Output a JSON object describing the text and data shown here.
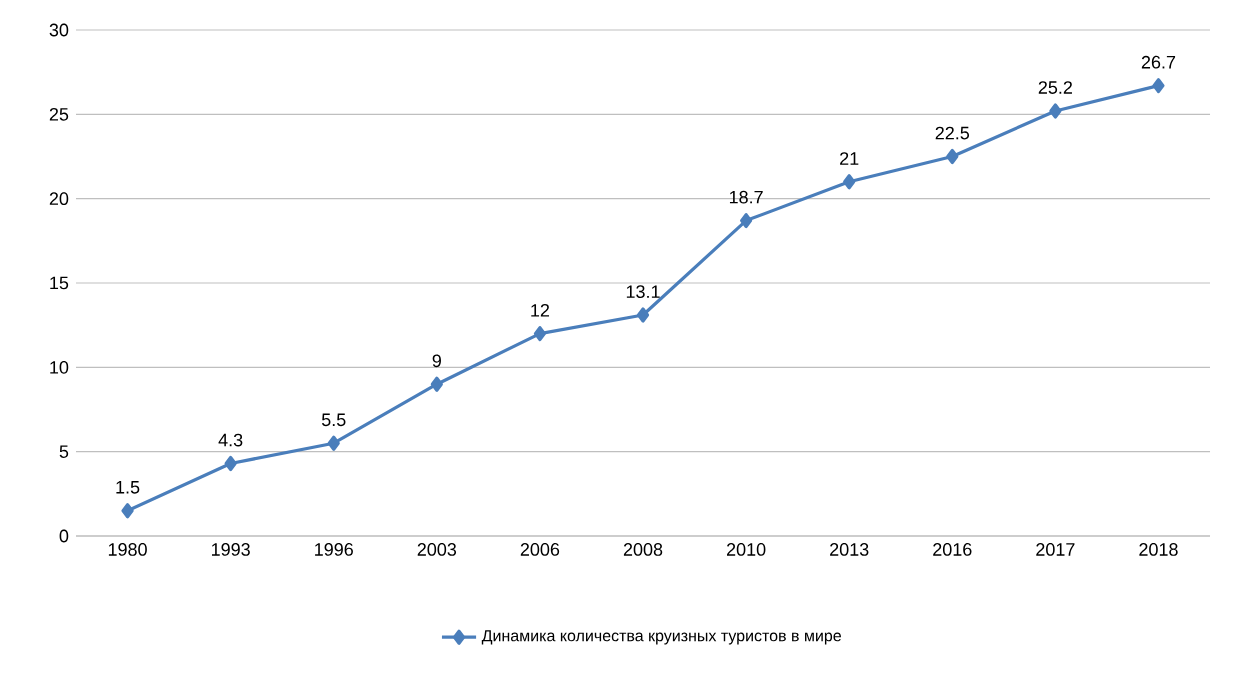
{
  "chart_data": {
    "type": "line",
    "categories": [
      "1980",
      "1993",
      "1996",
      "2003",
      "2006",
      "2008",
      "2010",
      "2013",
      "2016",
      "2017",
      "2018"
    ],
    "series": [
      {
        "name": "Динамика количества круизных туристов в мире",
        "color": "#4a7ebb",
        "values": [
          1.5,
          4.3,
          5.5,
          9,
          12,
          13.1,
          18.7,
          21,
          22.5,
          25.2,
          26.7
        ]
      }
    ],
    "ylim": [
      0,
      30
    ],
    "yticks": [
      0,
      5,
      10,
      15,
      20,
      25,
      30
    ],
    "grid": "y",
    "legend": "bottom",
    "marker": "diamond",
    "line_style": "solid",
    "data_labels": true
  }
}
